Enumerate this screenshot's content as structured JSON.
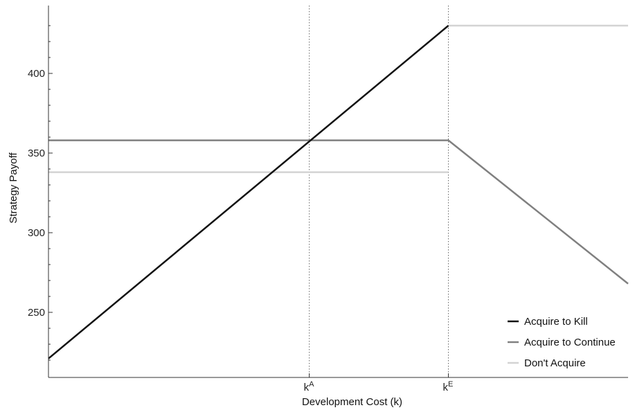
{
  "chart_data": {
    "type": "line",
    "title": "",
    "xlabel": "Development Cost (k)",
    "ylabel": "Strategy Payoff",
    "xlim": [
      0,
      1
    ],
    "ylim": [
      210,
      440
    ],
    "yticks": [
      250,
      300,
      350,
      400
    ],
    "grid": false,
    "legend_position": "bottom-right",
    "x_markers": [
      {
        "base": "k",
        "sup": "A",
        "x": 0.45
      },
      {
        "base": "k",
        "sup": "E",
        "x": 0.69
      }
    ],
    "series": [
      {
        "name": "Acquire to Kill",
        "color": "#111111",
        "points": [
          [
            0.0,
            221
          ],
          [
            0.69,
            430
          ]
        ]
      },
      {
        "name": "Acquire to Continue",
        "color": "#808080",
        "points": [
          [
            0.0,
            358
          ],
          [
            0.69,
            358
          ],
          [
            1.0,
            268
          ]
        ]
      },
      {
        "name": "Don't Acquire",
        "color": "#d3d3d3",
        "segments": [
          [
            [
              0.0,
              338
            ],
            [
              0.69,
              338
            ]
          ],
          [
            [
              0.69,
              430
            ],
            [
              1.0,
              430
            ]
          ]
        ]
      }
    ]
  }
}
